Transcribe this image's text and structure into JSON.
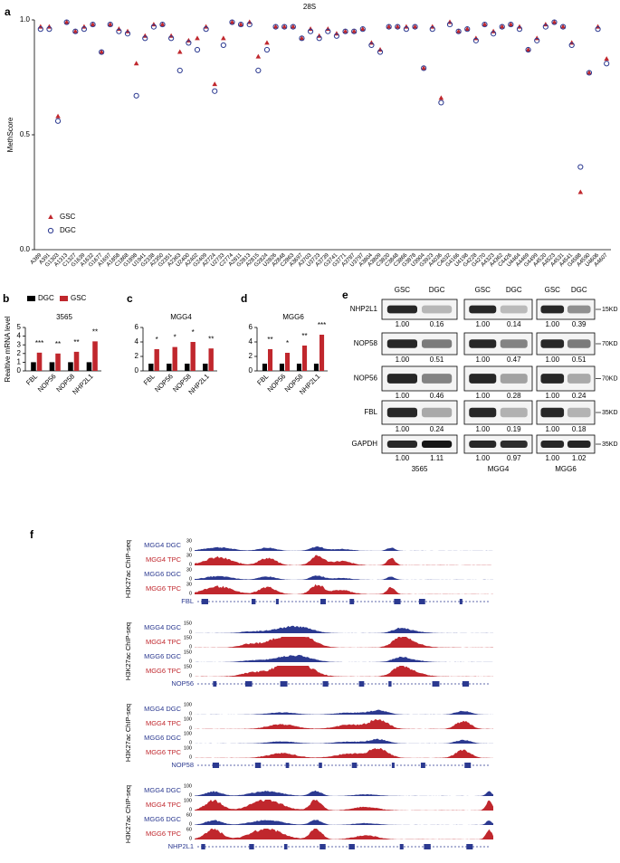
{
  "panel_labels": [
    "a",
    "b",
    "c",
    "d",
    "e",
    "f"
  ],
  "chart_data": [
    {
      "type": "dot",
      "title": "28S",
      "ylabel": "MethScore",
      "categories": [
        "A389",
        "A391",
        "G1303",
        "A1313",
        "C1327",
        "G1639",
        "A1632",
        "G1677",
        "A1697",
        "A1858",
        "C1868",
        "G1898",
        "U1941",
        "G2338",
        "A2350",
        "G2351",
        "A2363",
        "U2400",
        "A2402",
        "G2409",
        "A2724",
        "U2733",
        "C2774",
        "A2811",
        "G2813",
        "A2815",
        "G2824",
        "U2826",
        "A2848",
        "C2863",
        "A3697",
        "A3703",
        "U3723",
        "A3739",
        "G3741",
        "G3771",
        "A3787",
        "U3797",
        "A3804",
        "A3809",
        "C3820",
        "C3848",
        "C3866",
        "G3878",
        "U3904",
        "G3923",
        "A4036",
        "C4032",
        "G4166",
        "U4198",
        "G4228",
        "G4270",
        "A4323",
        "A4362",
        "C4426",
        "U4464",
        "A4469",
        "G4499",
        "A4520",
        "A4523",
        "A4531",
        "A4541",
        "G4588",
        "A4590",
        "U4606",
        "A4607"
      ],
      "series": [
        {
          "name": "GSC",
          "color": "#c0272d",
          "marker": "triangle",
          "values": [
            0.97,
            0.97,
            0.58,
            0.99,
            0.95,
            0.97,
            0.98,
            0.86,
            0.98,
            0.96,
            0.95,
            0.81,
            0.93,
            0.98,
            0.98,
            0.93,
            0.86,
            0.91,
            0.92,
            0.97,
            0.72,
            0.92,
            0.99,
            0.98,
            0.99,
            0.84,
            0.9,
            0.97,
            0.97,
            0.97,
            0.92,
            0.96,
            0.93,
            0.96,
            0.94,
            0.95,
            0.95,
            0.96,
            0.9,
            0.87,
            0.97,
            0.97,
            0.97,
            0.97,
            0.79,
            0.97,
            0.66,
            0.99,
            0.95,
            0.96,
            0.92,
            0.98,
            0.95,
            0.97,
            0.98,
            0.97,
            0.87,
            0.92,
            0.98,
            0.99,
            0.97,
            0.9,
            0.25,
            0.77,
            0.97,
            0.83
          ]
        },
        {
          "name": "DGC",
          "color": "#2b3990",
          "marker": "circle",
          "values": [
            0.96,
            0.96,
            0.56,
            0.99,
            0.95,
            0.96,
            0.98,
            0.86,
            0.98,
            0.95,
            0.94,
            0.67,
            0.92,
            0.97,
            0.98,
            0.92,
            0.78,
            0.9,
            0.87,
            0.96,
            0.69,
            0.89,
            0.99,
            0.98,
            0.98,
            0.78,
            0.87,
            0.97,
            0.97,
            0.97,
            0.92,
            0.95,
            0.92,
            0.95,
            0.93,
            0.95,
            0.95,
            0.96,
            0.89,
            0.86,
            0.97,
            0.97,
            0.96,
            0.97,
            0.79,
            0.96,
            0.64,
            0.98,
            0.95,
            0.96,
            0.91,
            0.98,
            0.94,
            0.97,
            0.98,
            0.96,
            0.87,
            0.91,
            0.97,
            0.99,
            0.97,
            0.89,
            0.36,
            0.77,
            0.96,
            0.81
          ]
        }
      ],
      "ylim": [
        0,
        1
      ],
      "yticks": [
        {
          "value": 0,
          "label": "0.0"
        },
        0.5,
        {
          "value": 1,
          "label": "1.0"
        }
      ],
      "legend": "lower-left"
    },
    {
      "type": "bar",
      "title": "3565",
      "ylabel": "Realtive mRNA level",
      "categories": [
        "FBL",
        "NOP56",
        "NOP58",
        "NHP2L1"
      ],
      "series": [
        {
          "name": "DGC",
          "color": "#000000",
          "values": [
            1,
            1,
            1,
            1
          ]
        },
        {
          "name": "GSC",
          "color": "#c0272d",
          "values": [
            2.1,
            2.0,
            2.2,
            3.4
          ]
        }
      ],
      "annotations": [
        "***",
        "**",
        "**",
        "**"
      ],
      "ylim": [
        0,
        5
      ],
      "yticks": [
        0,
        1,
        2,
        3,
        4,
        5
      ],
      "legend": "top"
    },
    {
      "type": "bar",
      "title": "MGG4",
      "categories": [
        "FBL",
        "NOP56",
        "NOP58",
        "NHP2L1"
      ],
      "series": [
        {
          "color": "#000000",
          "values": [
            1,
            1,
            1,
            1
          ]
        },
        {
          "color": "#c0272d",
          "values": [
            3.0,
            3.3,
            4.0,
            3.1
          ]
        }
      ],
      "annotations": [
        "*",
        "*",
        "*",
        "**"
      ],
      "ylim": [
        0,
        6
      ],
      "yticks": [
        0,
        2,
        4,
        6
      ]
    },
    {
      "type": "bar",
      "title": "MGG6",
      "categories": [
        "FBL",
        "NOP56",
        "NOP58",
        "NHP2L1"
      ],
      "series": [
        {
          "color": "#000000",
          "values": [
            1,
            1,
            1,
            1
          ]
        },
        {
          "color": "#c0272d",
          "values": [
            3.0,
            2.5,
            3.5,
            5.0
          ]
        }
      ],
      "annotations": [
        "**",
        "*",
        "**",
        "***"
      ],
      "ylim": [
        0,
        6
      ],
      "yticks": [
        0,
        2,
        4,
        6
      ]
    }
  ],
  "blot": {
    "lanes": [
      "GSC",
      "DGC"
    ],
    "cell_lines": [
      "3565",
      "MGG4",
      "MGG6"
    ],
    "rows": [
      {
        "protein": "NHP2L1",
        "marker": "15KD",
        "quant": [
          [
            "1.00",
            "0.16"
          ],
          [
            "1.00",
            "0.14"
          ],
          [
            "1.00",
            "0.39"
          ]
        ]
      },
      {
        "protein": "NOP58",
        "marker": "70KD",
        "quant": [
          [
            "1.00",
            "0.51"
          ],
          [
            "1.00",
            "0.47"
          ],
          [
            "1.00",
            "0.51"
          ]
        ]
      },
      {
        "protein": "NOP56",
        "marker": "70KD",
        "quant": [
          [
            "1.00",
            "0.46"
          ],
          [
            "1.00",
            "0.28"
          ],
          [
            "1.00",
            "0.24"
          ]
        ]
      },
      {
        "protein": "FBL",
        "marker": "35KD",
        "quant": [
          [
            "1.00",
            "0.24"
          ],
          [
            "1.00",
            "0.19"
          ],
          [
            "1.00",
            "0.18"
          ]
        ]
      },
      {
        "protein": "GAPDH",
        "marker": "35KD",
        "quant": [
          [
            "1.00",
            "1.11"
          ],
          [
            "1.00",
            "0.97"
          ],
          [
            "1.00",
            "1.02"
          ]
        ]
      }
    ]
  },
  "chip": {
    "ylabel": "H3K27ac ChIP-seq",
    "blocks": [
      {
        "gene": "FBL",
        "tracks": [
          {
            "name": "MGG4 DGC",
            "color": "#2b3990",
            "scale": [
              0,
              30
            ]
          },
          {
            "name": "MGG4 TPC",
            "color": "#c0272d",
            "scale": [
              0,
              30
            ]
          },
          {
            "name": "MGG6 DGC",
            "color": "#2b3990",
            "scale": [
              0,
              30
            ]
          },
          {
            "name": "MGG6 TPC",
            "color": "#c0272d",
            "scale": [
              0,
              30
            ]
          }
        ]
      },
      {
        "gene": "NOP56",
        "tracks": [
          {
            "name": "MGG4 DGC",
            "color": "#2b3990",
            "scale": [
              0,
              150
            ]
          },
          {
            "name": "MGG4 TPC",
            "color": "#c0272d",
            "scale": [
              0,
              150
            ]
          },
          {
            "name": "MGG6 DGC",
            "color": "#2b3990",
            "scale": [
              0,
              150
            ]
          },
          {
            "name": "MGG6 TPC",
            "color": "#c0272d",
            "scale": [
              0,
              150
            ]
          }
        ]
      },
      {
        "gene": "NOP58",
        "tracks": [
          {
            "name": "MGG4 DGC",
            "color": "#2b3990",
            "scale": [
              0,
              100
            ]
          },
          {
            "name": "MGG4 TPC",
            "color": "#c0272d",
            "scale": [
              0,
              100
            ]
          },
          {
            "name": "MGG6 DGC",
            "color": "#2b3990",
            "scale": [
              0,
              100
            ]
          },
          {
            "name": "MGG6 TPC",
            "color": "#c0272d",
            "scale": [
              0,
              100
            ]
          }
        ]
      },
      {
        "gene": "NHP2L1",
        "tracks": [
          {
            "name": "MGG4 DGC",
            "color": "#2b3990",
            "scale": [
              0,
              100
            ]
          },
          {
            "name": "MGG4 TPC",
            "color": "#c0272d",
            "scale": [
              0,
              100
            ]
          },
          {
            "name": "MGG6 DGC",
            "color": "#2b3990",
            "scale": [
              0,
              60
            ]
          },
          {
            "name": "MGG6 TPC",
            "color": "#c0272d",
            "scale": [
              0,
              60
            ]
          }
        ]
      }
    ]
  }
}
